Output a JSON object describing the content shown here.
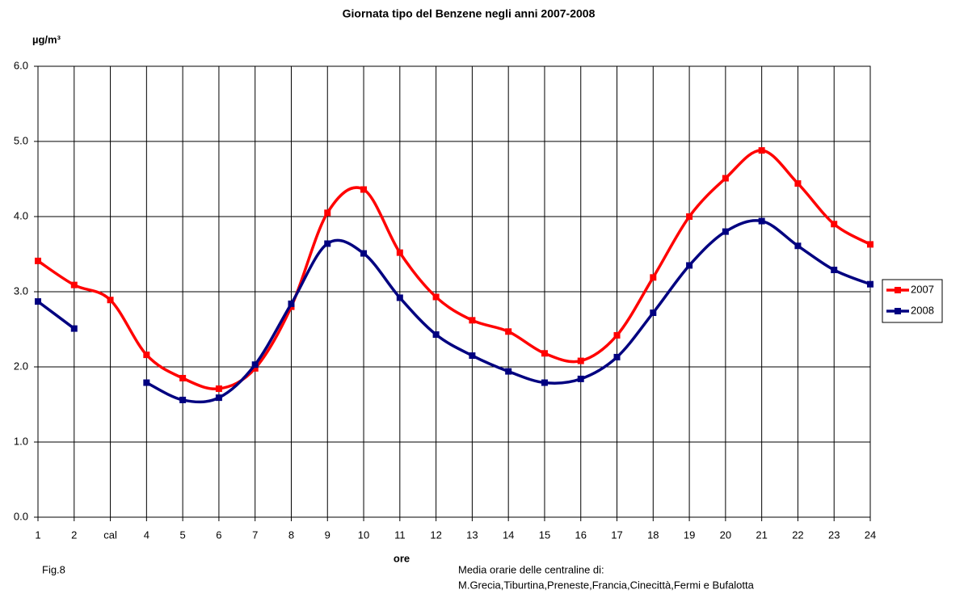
{
  "chart_data": {
    "type": "line",
    "title": "Giornata tipo del Benzene negli anni 2007-2008",
    "y_unit": "µg/m³",
    "x_label": "ore",
    "figure_label": "Fig.8",
    "note": [
      "Media orarie delle centraline di:",
      "M.Grecia,Tiburtina,Preneste,Francia,Cinecittà,Fermi e Bufalotta"
    ],
    "categories": [
      "1",
      "2",
      "cal",
      "4",
      "5",
      "6",
      "7",
      "8",
      "9",
      "10",
      "11",
      "12",
      "13",
      "14",
      "15",
      "16",
      "17",
      "18",
      "19",
      "20",
      "21",
      "22",
      "23",
      "24"
    ],
    "series": [
      {
        "name": "2007",
        "color": "#ff0000",
        "values": [
          3.41,
          3.09,
          2.89,
          2.16,
          1.85,
          1.71,
          1.98,
          2.8,
          4.05,
          4.36,
          3.52,
          2.93,
          2.62,
          2.47,
          2.18,
          2.08,
          2.42,
          3.19,
          4.0,
          4.51,
          4.88,
          4.44,
          3.9,
          3.63
        ]
      },
      {
        "name": "2008",
        "color": "#000080",
        "values": [
          2.87,
          2.51,
          null,
          1.79,
          1.56,
          1.59,
          2.03,
          2.84,
          3.64,
          3.51,
          2.92,
          2.43,
          2.15,
          1.94,
          1.79,
          1.84,
          2.13,
          2.72,
          3.35,
          3.8,
          3.94,
          3.61,
          3.29,
          3.1
        ]
      }
    ],
    "ylim": [
      0,
      6
    ],
    "yticks": [
      {
        "value": 0,
        "label": "0.0"
      },
      {
        "value": 1,
        "label": "1.0"
      },
      {
        "value": 2,
        "label": "2.0"
      },
      {
        "value": 3,
        "label": "3.0"
      },
      {
        "value": 4,
        "label": "4.0"
      },
      {
        "value": 5,
        "label": "5.0"
      },
      {
        "value": 6,
        "label": "6.0"
      }
    ],
    "grid": true,
    "smooth": true,
    "legend": "right"
  }
}
